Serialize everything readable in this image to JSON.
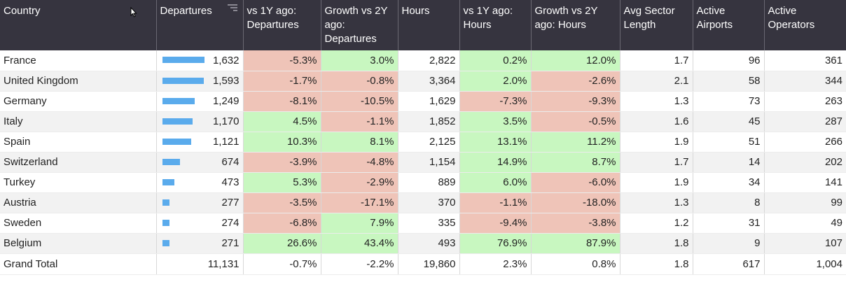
{
  "columns": [
    "Country",
    "Departures",
    "vs 1Y ago: Departures",
    "Growth vs 2Y ago: Departures",
    "Hours",
    "vs 1Y ago: Hours",
    "Growth vs 2Y ago: Hours",
    "Avg Sector Length",
    "Active Airports",
    "Active Operators"
  ],
  "bar_max": 1632,
  "rows": [
    {
      "country": "France",
      "departures": "1,632",
      "dep_value": 1632,
      "dep_1y": "-5.3%",
      "dep_2y": "3.0%",
      "hours": "2,822",
      "hrs_1y": "0.2%",
      "hrs_2y": "12.0%",
      "avg_sector": "1.7",
      "airports": "96",
      "operators": "361"
    },
    {
      "country": "United Kingdom",
      "departures": "1,593",
      "dep_value": 1593,
      "dep_1y": "-1.7%",
      "dep_2y": "-0.8%",
      "hours": "3,364",
      "hrs_1y": "2.0%",
      "hrs_2y": "-2.6%",
      "avg_sector": "2.1",
      "airports": "58",
      "operators": "344"
    },
    {
      "country": "Germany",
      "departures": "1,249",
      "dep_value": 1249,
      "dep_1y": "-8.1%",
      "dep_2y": "-10.5%",
      "hours": "1,629",
      "hrs_1y": "-7.3%",
      "hrs_2y": "-9.3%",
      "avg_sector": "1.3",
      "airports": "73",
      "operators": "263"
    },
    {
      "country": "Italy",
      "departures": "1,170",
      "dep_value": 1170,
      "dep_1y": "4.5%",
      "dep_2y": "-1.1%",
      "hours": "1,852",
      "hrs_1y": "3.5%",
      "hrs_2y": "-0.5%",
      "avg_sector": "1.6",
      "airports": "45",
      "operators": "287"
    },
    {
      "country": "Spain",
      "departures": "1,121",
      "dep_value": 1121,
      "dep_1y": "10.3%",
      "dep_2y": "8.1%",
      "hours": "2,125",
      "hrs_1y": "13.1%",
      "hrs_2y": "11.2%",
      "avg_sector": "1.9",
      "airports": "51",
      "operators": "266"
    },
    {
      "country": "Switzerland",
      "departures": "674",
      "dep_value": 674,
      "dep_1y": "-3.9%",
      "dep_2y": "-4.8%",
      "hours": "1,154",
      "hrs_1y": "14.9%",
      "hrs_2y": "8.7%",
      "avg_sector": "1.7",
      "airports": "14",
      "operators": "202"
    },
    {
      "country": "Turkey",
      "departures": "473",
      "dep_value": 473,
      "dep_1y": "5.3%",
      "dep_2y": "-2.9%",
      "hours": "889",
      "hrs_1y": "6.0%",
      "hrs_2y": "-6.0%",
      "avg_sector": "1.9",
      "airports": "34",
      "operators": "141"
    },
    {
      "country": "Austria",
      "departures": "277",
      "dep_value": 277,
      "dep_1y": "-3.5%",
      "dep_2y": "-17.1%",
      "hours": "370",
      "hrs_1y": "-1.1%",
      "hrs_2y": "-18.0%",
      "avg_sector": "1.3",
      "airports": "8",
      "operators": "99"
    },
    {
      "country": "Sweden",
      "departures": "274",
      "dep_value": 274,
      "dep_1y": "-6.8%",
      "dep_2y": "7.9%",
      "hours": "335",
      "hrs_1y": "-9.4%",
      "hrs_2y": "-3.8%",
      "avg_sector": "1.2",
      "airports": "31",
      "operators": "49"
    },
    {
      "country": "Belgium",
      "departures": "271",
      "dep_value": 271,
      "dep_1y": "26.6%",
      "dep_2y": "43.4%",
      "hours": "493",
      "hrs_1y": "76.9%",
      "hrs_2y": "87.9%",
      "avg_sector": "1.8",
      "airports": "9",
      "operators": "107"
    }
  ],
  "total": {
    "country": "Grand Total",
    "departures": "11,131",
    "dep_1y": "-0.7%",
    "dep_2y": "-2.2%",
    "hours": "19,860",
    "hrs_1y": "2.3%",
    "hrs_2y": "0.8%",
    "avg_sector": "1.8",
    "airports": "617",
    "operators": "1,004"
  },
  "colors": {
    "header_bg": "#36343f",
    "positive": "#c8f7c0",
    "negative": "#efc4b8",
    "bar": "#5aabec"
  },
  "icons": {
    "sort": "sort-lines-icon",
    "cursor": "mouse-cursor-icon"
  }
}
